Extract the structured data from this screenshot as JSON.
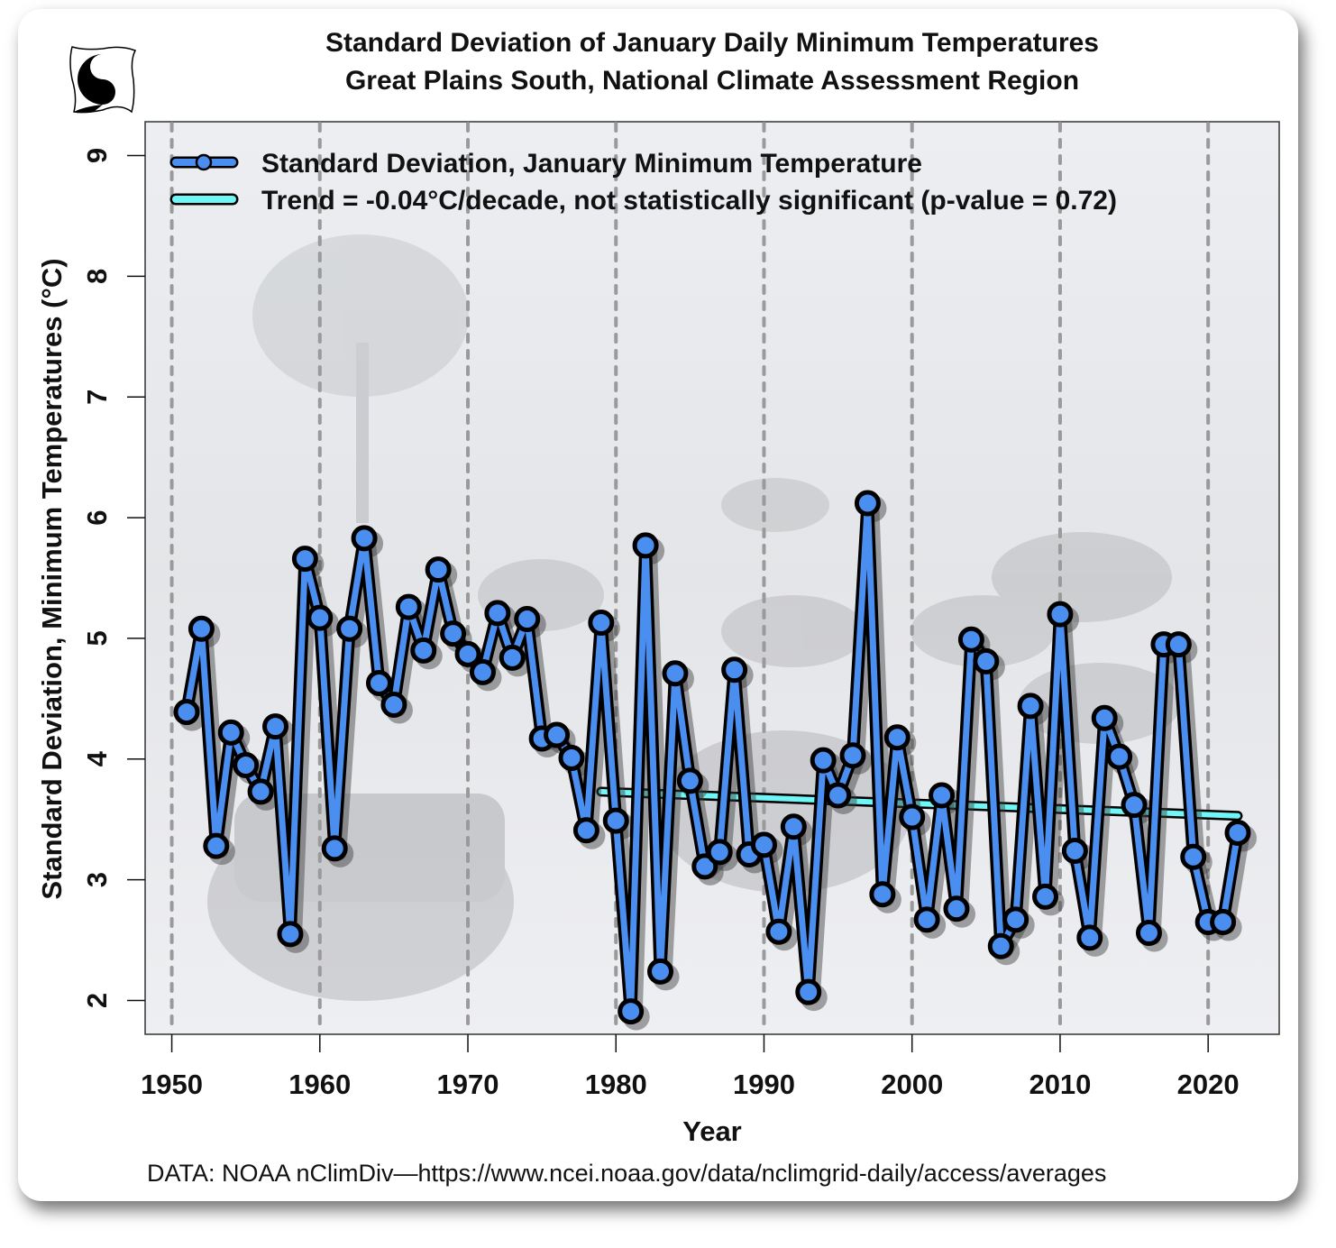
{
  "header": {
    "title_line1": "Standard Deviation of January Daily Minimum Temperatures",
    "title_line2": "Great Plains South, National Climate Assessment Region",
    "logo_icon": "yin-yang-cat-logo-icon"
  },
  "footer": {
    "source": "DATA: NOAA nClimDiv—https://www.ncei.noaa.gov/data/nclimgrid-daily/access/averages"
  },
  "colors": {
    "series": "#4a8ef0",
    "trend": "#6ff6f6",
    "plot_bg": "#e9eaee",
    "grid": "#9a9a9a"
  },
  "chart_data": {
    "type": "line",
    "title": "Standard Deviation of January Daily Minimum Temperatures",
    "subtitle": "Great Plains South, National Climate Assessment Region",
    "xlabel": "Year",
    "ylabel": "Standard Deviation, Minimum Temperatures (°C)",
    "xlim": [
      1948.2,
      2024.8
    ],
    "ylim": [
      1.72,
      9.28
    ],
    "xticks": [
      1950,
      1960,
      1970,
      1980,
      1990,
      2000,
      2010,
      2020
    ],
    "xtick_labels": [
      "1950",
      "1960",
      "1970",
      "1980",
      "1990",
      "2000",
      "2010",
      "2020"
    ],
    "yticks": [
      2,
      3,
      4,
      5,
      6,
      7,
      8,
      9
    ],
    "ytick_labels": [
      "2",
      "3",
      "4",
      "5",
      "6",
      "7",
      "8",
      "9"
    ],
    "grid": "vertical dashed at x ticks",
    "legend_position": "top-left",
    "legend": [
      "Standard Deviation, January Minimum Temperature",
      "Trend = -0.04°C/decade, not statistically significant (p-value = 0.72)"
    ],
    "x": [
      1951,
      1952,
      1953,
      1954,
      1955,
      1956,
      1957,
      1958,
      1959,
      1960,
      1961,
      1962,
      1963,
      1964,
      1965,
      1966,
      1967,
      1968,
      1969,
      1970,
      1971,
      1972,
      1973,
      1974,
      1975,
      1976,
      1977,
      1978,
      1979,
      1980,
      1981,
      1982,
      1983,
      1984,
      1985,
      1986,
      1987,
      1988,
      1989,
      1990,
      1991,
      1992,
      1993,
      1994,
      1995,
      1996,
      1997,
      1998,
      1999,
      2000,
      2001,
      2002,
      2003,
      2004,
      2005,
      2006,
      2007,
      2008,
      2009,
      2010,
      2011,
      2012,
      2013,
      2014,
      2015,
      2016,
      2017,
      2018,
      2019,
      2020,
      2021,
      2022
    ],
    "series": [
      {
        "name": "Standard Deviation, January Minimum Temperature",
        "values": [
          4.39,
          5.08,
          3.28,
          4.22,
          3.95,
          3.73,
          4.27,
          2.55,
          5.66,
          5.17,
          3.26,
          5.08,
          5.83,
          4.63,
          4.45,
          5.26,
          4.9,
          5.57,
          5.04,
          4.87,
          4.72,
          5.21,
          4.84,
          5.16,
          4.17,
          4.2,
          4.01,
          3.41,
          5.13,
          3.49,
          1.91,
          5.77,
          2.24,
          4.71,
          3.82,
          3.11,
          3.23,
          4.74,
          3.21,
          3.29,
          2.57,
          3.44,
          2.07,
          3.99,
          3.7,
          4.03,
          6.12,
          2.88,
          4.18,
          3.52,
          2.67,
          3.7,
          2.76,
          4.99,
          4.81,
          2.45,
          2.67,
          4.44,
          2.86,
          5.2,
          3.24,
          2.52,
          4.34,
          4.02,
          3.62,
          2.56,
          4.95,
          4.95,
          3.19,
          2.65,
          2.65,
          3.39
        ]
      },
      {
        "name": "Trend",
        "x": [
          1979,
          2022
        ],
        "values": [
          3.73,
          3.53
        ]
      }
    ]
  }
}
